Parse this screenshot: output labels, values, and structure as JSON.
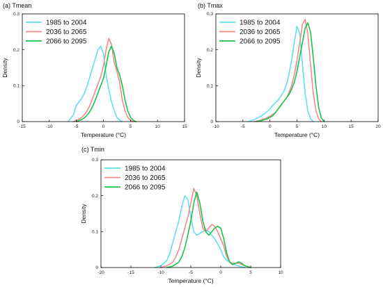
{
  "colors": {
    "1985 to 2004": "#5ee0ee",
    "2036 to 2065": "#f28a8a",
    "2066 to 2095": "#17c44a"
  },
  "chart_data": [
    {
      "type": "line",
      "title": "(a) Tmean",
      "xlabel": "Temperature (°C)",
      "ylabel": "Density",
      "xlim": [
        -15,
        15
      ],
      "ylim": [
        0,
        0.3
      ],
      "xticks": [
        -15,
        -10,
        -5,
        0,
        5,
        10,
        15
      ],
      "yticks": [
        0,
        0.1,
        0.2,
        0.3
      ],
      "xtick_labels": [
        "-15",
        "-10",
        "-5",
        "0",
        "5",
        "10",
        "15"
      ],
      "ytick_labels": [
        "0",
        "0.1",
        "0.2",
        "0.3"
      ],
      "legend_placement": "top-left",
      "series": [
        {
          "name": "1985 to 2004",
          "x": [
            -6.5,
            -5.5,
            -5,
            -4.5,
            -4,
            -3.5,
            -3,
            -2.5,
            -2,
            -1.5,
            -1,
            -0.5,
            0,
            0.5,
            1,
            1.5,
            2,
            2.5,
            3,
            3.5
          ],
          "y": [
            0,
            0.02,
            0.045,
            0.055,
            0.065,
            0.08,
            0.1,
            0.125,
            0.15,
            0.175,
            0.2,
            0.21,
            0.19,
            0.13,
            0.09,
            0.055,
            0.03,
            0.012,
            0.004,
            0
          ]
        },
        {
          "name": "2036 to 2065",
          "x": [
            -5.5,
            -5,
            -4.5,
            -4,
            -3.5,
            -3,
            -2.5,
            -2,
            -1.5,
            -1,
            -0.5,
            0,
            0.5,
            1,
            1.5,
            2,
            2.5,
            3,
            3.5,
            4,
            4.5,
            5,
            5.5
          ],
          "y": [
            0,
            0.003,
            0.007,
            0.012,
            0.02,
            0.03,
            0.045,
            0.065,
            0.085,
            0.105,
            0.125,
            0.155,
            0.2,
            0.232,
            0.215,
            0.165,
            0.14,
            0.11,
            0.06,
            0.03,
            0.012,
            0.004,
            0
          ]
        },
        {
          "name": "2066 to 2095",
          "x": [
            -5,
            -4.5,
            -4,
            -3.5,
            -3,
            -2.5,
            -2,
            -1.5,
            -1,
            -0.5,
            0,
            0.5,
            1,
            1.5,
            2,
            2.5,
            3,
            3.5,
            4,
            4.5,
            5,
            5.5,
            6
          ],
          "y": [
            0,
            0.003,
            0.006,
            0.011,
            0.018,
            0.028,
            0.042,
            0.06,
            0.08,
            0.1,
            0.12,
            0.155,
            0.195,
            0.21,
            0.19,
            0.15,
            0.13,
            0.1,
            0.06,
            0.03,
            0.012,
            0.004,
            0
          ]
        }
      ]
    },
    {
      "type": "line",
      "title": "(b) Tmax",
      "xlabel": "Temperature (°C)",
      "ylabel": "Density",
      "xlim": [
        -10,
        20
      ],
      "ylim": [
        0,
        0.3
      ],
      "xticks": [
        -10,
        -5,
        0,
        5,
        10,
        15,
        20
      ],
      "yticks": [
        0,
        0.1,
        0.2,
        0.3
      ],
      "xtick_labels": [
        "-10",
        "-5",
        "0",
        "5",
        "10",
        "15",
        "20"
      ],
      "ytick_labels": [
        "0",
        "0.1",
        "0.2",
        "0.3"
      ],
      "legend_placement": "top-left",
      "series": [
        {
          "name": "1985 to 2004",
          "x": [
            -4,
            -3,
            -2,
            -1,
            0,
            0.5,
            1,
            1.5,
            2,
            2.5,
            3,
            3.5,
            4,
            4.5,
            5,
            5.5,
            6,
            6.5,
            7,
            7.5,
            8
          ],
          "y": [
            0,
            0.005,
            0.012,
            0.022,
            0.035,
            0.045,
            0.052,
            0.06,
            0.07,
            0.082,
            0.1,
            0.13,
            0.17,
            0.22,
            0.265,
            0.245,
            0.16,
            0.08,
            0.03,
            0.008,
            0
          ]
        },
        {
          "name": "2036 to 2065",
          "x": [
            -3,
            -2,
            -1,
            0,
            1,
            1.5,
            2,
            2.5,
            3,
            3.5,
            4,
            4.5,
            5,
            5.5,
            6,
            6.5,
            7,
            7.5,
            8,
            8.5,
            9,
            9.5
          ],
          "y": [
            0,
            0.003,
            0.008,
            0.015,
            0.025,
            0.035,
            0.045,
            0.055,
            0.065,
            0.08,
            0.1,
            0.13,
            0.17,
            0.22,
            0.27,
            0.285,
            0.245,
            0.16,
            0.08,
            0.03,
            0.008,
            0
          ]
        },
        {
          "name": "2066 to 2095",
          "x": [
            -2.5,
            -1.5,
            -0.5,
            0.5,
            1,
            1.5,
            2,
            2.5,
            3,
            3.5,
            4,
            4.5,
            5,
            5.5,
            6,
            6.5,
            7,
            7.5,
            8,
            8.5,
            9,
            9.5,
            10
          ],
          "y": [
            0,
            0.003,
            0.008,
            0.016,
            0.025,
            0.035,
            0.045,
            0.055,
            0.065,
            0.075,
            0.09,
            0.11,
            0.14,
            0.18,
            0.22,
            0.26,
            0.275,
            0.25,
            0.18,
            0.1,
            0.04,
            0.01,
            0
          ]
        }
      ]
    },
    {
      "type": "line",
      "title": "(c) Tmin",
      "xlabel": "Temperature (°C)",
      "ylabel": "Density",
      "xlim": [
        -20,
        10
      ],
      "ylim": [
        0,
        0.3
      ],
      "xticks": [
        -20,
        -15,
        -10,
        -5,
        0,
        5,
        10
      ],
      "yticks": [
        0,
        0.1,
        0.2,
        0.3
      ],
      "xtick_labels": [
        "-20",
        "-15",
        "-10",
        "-5",
        "0",
        "5",
        "10"
      ],
      "ytick_labels": [
        "0",
        "0.1",
        "0.2",
        "0.3"
      ],
      "legend_placement": "top-left",
      "series": [
        {
          "name": "1985 to 2004",
          "x": [
            -11,
            -10,
            -9,
            -8.5,
            -8,
            -7.5,
            -7,
            -6.5,
            -6,
            -5.5,
            -5,
            -4.5,
            -4,
            -3.5,
            -3,
            -2.5,
            -2,
            -1.5,
            -1,
            -0.5,
            0,
            0.5,
            1,
            2,
            3,
            4
          ],
          "y": [
            0,
            0.005,
            0.02,
            0.04,
            0.07,
            0.1,
            0.13,
            0.17,
            0.2,
            0.19,
            0.14,
            0.1,
            0.09,
            0.095,
            0.1,
            0.105,
            0.1,
            0.09,
            0.08,
            0.065,
            0.05,
            0.03,
            0.02,
            0.01,
            0.004,
            0
          ]
        },
        {
          "name": "2036 to 2065",
          "x": [
            -10,
            -9,
            -8,
            -7.5,
            -7,
            -6.5,
            -6,
            -5.5,
            -5,
            -4.5,
            -4,
            -3.5,
            -3,
            -2.5,
            -2,
            -1.5,
            -1,
            -0.5,
            0,
            0.5,
            1,
            1.5,
            2,
            3,
            4,
            5
          ],
          "y": [
            0,
            0.005,
            0.015,
            0.03,
            0.05,
            0.08,
            0.11,
            0.14,
            0.18,
            0.22,
            0.2,
            0.15,
            0.11,
            0.1,
            0.11,
            0.12,
            0.115,
            0.1,
            0.08,
            0.06,
            0.03,
            0.015,
            0.012,
            0.012,
            0.005,
            0
          ]
        },
        {
          "name": "2066 to 2095",
          "x": [
            -9,
            -8,
            -7,
            -6.5,
            -6,
            -5.5,
            -5,
            -4.5,
            -4,
            -3.5,
            -3,
            -2.5,
            -2,
            -1.5,
            -1,
            -0.5,
            0,
            0.5,
            1,
            1.5,
            2,
            2.5,
            3,
            3.5,
            4,
            5
          ],
          "y": [
            0,
            0.004,
            0.015,
            0.03,
            0.055,
            0.09,
            0.13,
            0.18,
            0.21,
            0.18,
            0.13,
            0.1,
            0.09,
            0.1,
            0.11,
            0.115,
            0.11,
            0.08,
            0.04,
            0.015,
            0.008,
            0.012,
            0.016,
            0.012,
            0.005,
            0
          ]
        }
      ]
    }
  ]
}
